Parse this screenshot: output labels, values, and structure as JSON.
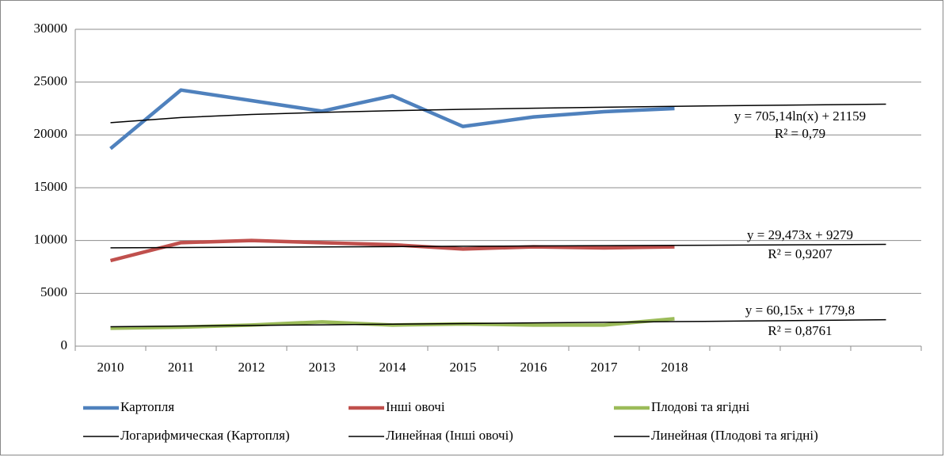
{
  "chart_data": {
    "type": "line",
    "categories": [
      "2010",
      "2011",
      "2012",
      "2013",
      "2014",
      "2015",
      "2016",
      "2017",
      "2018",
      null,
      null,
      null
    ],
    "ylim": [
      0,
      30000
    ],
    "yticks": [
      0,
      5000,
      10000,
      15000,
      20000,
      25000,
      30000
    ],
    "grid": true,
    "series": [
      {
        "name": "Картопля",
        "color": "#4f81bd",
        "values": [
          18700,
          24250,
          23250,
          22250,
          23700,
          20800,
          21700,
          22200,
          22500,
          null,
          null,
          null
        ]
      },
      {
        "name": "Інші овочі",
        "color": "#c0504d",
        "values": [
          8100,
          9800,
          10000,
          9800,
          9600,
          9200,
          9400,
          9300,
          9400,
          null,
          null,
          null
        ]
      },
      {
        "name": "Плодові та ягідні",
        "color": "#9bbb59",
        "values": [
          1700,
          1800,
          2000,
          2300,
          2000,
          2100,
          2000,
          2000,
          2600,
          null,
          null,
          null
        ]
      },
      {
        "name": "Логарифмическая (Картопля)",
        "color": "#000000",
        "trend": true,
        "equation": "y = 705,14ln(x) + 21159",
        "r2": "R² = 0,79",
        "values": [
          21159,
          21648,
          21934,
          22137,
          22294,
          22422,
          22531,
          22625,
          22708,
          22783,
          22850,
          22911
        ]
      },
      {
        "name": "Линейная (Інші овочі)",
        "color": "#000000",
        "trend": true,
        "equation": "y = 29,473x + 9279",
        "r2": "R² = 0,9207",
        "values": [
          9308,
          9338,
          9367,
          9397,
          9426,
          9456,
          9485,
          9515,
          9544,
          9574,
          9603,
          9633
        ]
      },
      {
        "name": "Линейная (Плодові та ягідні)",
        "color": "#000000",
        "trend": true,
        "equation": "y = 60,15x + 1779,8",
        "r2": "R² = 0,8761",
        "values": [
          1840,
          1900,
          1960,
          2020,
          2081,
          2141,
          2201,
          2261,
          2321,
          2381,
          2441,
          2502
        ]
      }
    ]
  }
}
